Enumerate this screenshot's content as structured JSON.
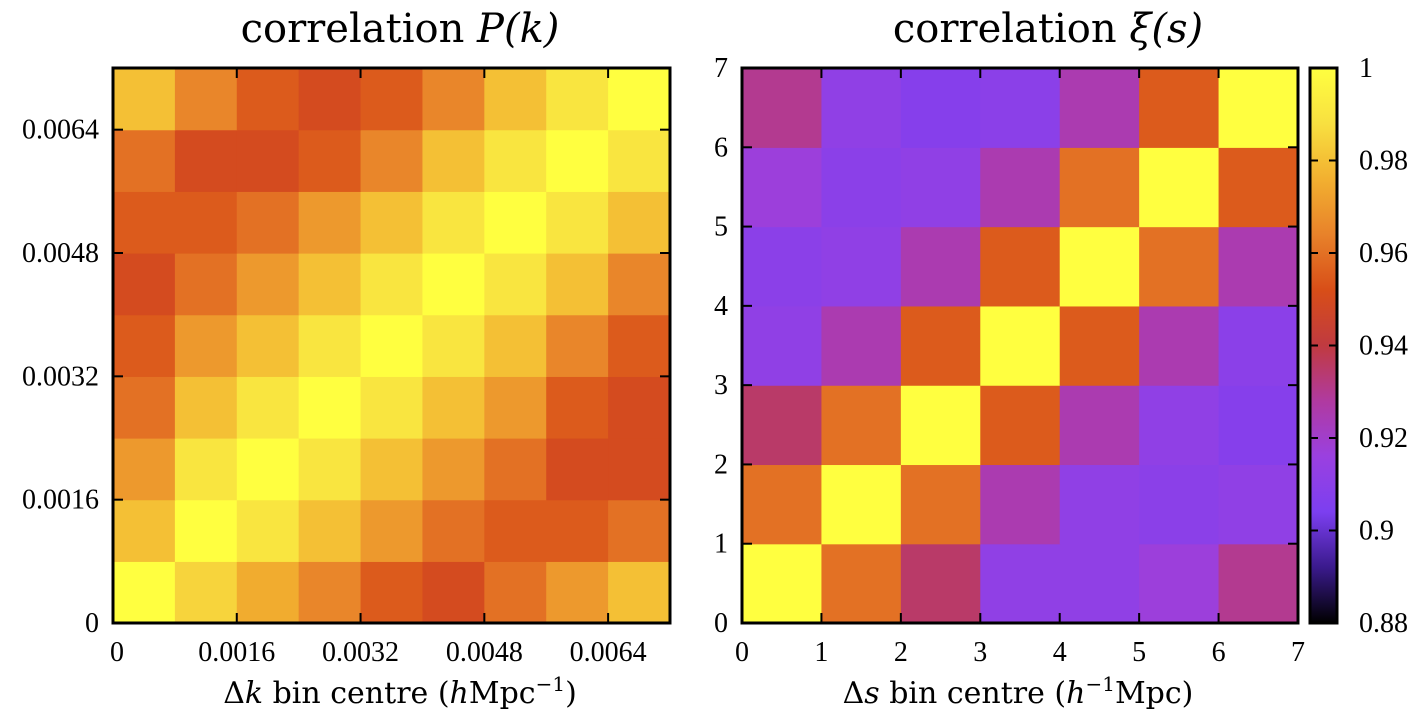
{
  "chart_data": [
    {
      "type": "heatmap",
      "id": "pk",
      "title": "correlation P(k)",
      "xlabel": "Δk bin centre (hMpc⁻¹)",
      "ylabel": "",
      "xlim": [
        0,
        0.0072
      ],
      "ylim": [
        0,
        0.0072
      ],
      "xticks": [
        0,
        0.0016,
        0.0032,
        0.0048,
        0.0064
      ],
      "yticks": [
        0,
        0.0016,
        0.0032,
        0.0048,
        0.0064
      ],
      "xtick_labels": [
        "0",
        "0.0016",
        "0.0032",
        "0.0048",
        "0.0064"
      ],
      "ytick_labels": [
        "0",
        "0.0016",
        "0.0032",
        "0.0048",
        "0.0064"
      ],
      "nx": 9,
      "ny": 9,
      "values": [
        [
          1.0,
          0.985,
          0.975,
          0.965,
          0.955,
          0.95,
          0.96,
          0.97,
          0.98
        ],
        [
          0.98,
          1.0,
          0.99,
          0.98,
          0.97,
          0.96,
          0.955,
          0.955,
          0.96
        ],
        [
          0.97,
          0.99,
          1.0,
          0.99,
          0.98,
          0.97,
          0.96,
          0.95,
          0.95
        ],
        [
          0.96,
          0.98,
          0.99,
          1.0,
          0.99,
          0.98,
          0.97,
          0.955,
          0.95
        ],
        [
          0.955,
          0.97,
          0.98,
          0.99,
          1.0,
          0.99,
          0.98,
          0.965,
          0.955
        ],
        [
          0.95,
          0.96,
          0.97,
          0.98,
          0.99,
          1.0,
          0.99,
          0.98,
          0.965
        ],
        [
          0.955,
          0.955,
          0.96,
          0.97,
          0.98,
          0.99,
          1.0,
          0.99,
          0.98
        ],
        [
          0.96,
          0.95,
          0.95,
          0.955,
          0.965,
          0.98,
          0.99,
          1.0,
          0.99
        ],
        [
          0.98,
          0.965,
          0.955,
          0.95,
          0.955,
          0.965,
          0.98,
          0.99,
          1.0
        ]
      ]
    },
    {
      "type": "heatmap",
      "id": "xi",
      "title": "correlation ξ(s)",
      "xlabel": "Δs bin centre (h⁻¹Mpc)",
      "ylabel": "",
      "xlim": [
        0,
        7
      ],
      "ylim": [
        0,
        7
      ],
      "xticks": [
        0,
        1,
        2,
        3,
        4,
        5,
        6,
        7
      ],
      "yticks": [
        0,
        1,
        2,
        3,
        4,
        5,
        6,
        7
      ],
      "xtick_labels": [
        "0",
        "1",
        "2",
        "3",
        "4",
        "5",
        "6",
        "7"
      ],
      "ytick_labels": [
        "0",
        "1",
        "2",
        "3",
        "4",
        "5",
        "6",
        "7"
      ],
      "nx": 7,
      "ny": 7,
      "values": [
        [
          1.0,
          0.96,
          0.935,
          0.912,
          0.912,
          0.917,
          0.93
        ],
        [
          0.96,
          1.0,
          0.96,
          0.925,
          0.912,
          0.91,
          0.912
        ],
        [
          0.935,
          0.96,
          1.0,
          0.955,
          0.925,
          0.912,
          0.908
        ],
        [
          0.912,
          0.925,
          0.955,
          1.0,
          0.955,
          0.925,
          0.91
        ],
        [
          0.91,
          0.912,
          0.925,
          0.955,
          1.0,
          0.96,
          0.925
        ],
        [
          0.917,
          0.91,
          0.912,
          0.925,
          0.96,
          1.0,
          0.955
        ],
        [
          0.93,
          0.912,
          0.908,
          0.91,
          0.925,
          0.955,
          1.0
        ]
      ]
    }
  ],
  "colorbar": {
    "range": [
      0.88,
      1.0
    ],
    "ticks": [
      "1",
      "0.98",
      "0.96",
      "0.94",
      "0.92",
      "0.9",
      "0.88"
    ],
    "tick_values": [
      1.0,
      0.98,
      0.96,
      0.94,
      0.92,
      0.9,
      0.88
    ],
    "palette": [
      "#000000",
      "#3a1a8c",
      "#7c3ff0",
      "#9a40e0",
      "#b03aa0",
      "#c03a40",
      "#d84e18",
      "#e8822a",
      "#f2b030",
      "#f8e040",
      "#ffff40"
    ]
  },
  "titles": {
    "pk_prefix": "correlation ",
    "pk_math": "P(k)",
    "xi_prefix": "correlation ",
    "xi_math": "ξ(s)"
  },
  "axis_labels": {
    "pk_delta": "Δ",
    "pk_var": "k",
    "pk_mid": " bin centre (",
    "pk_h": "h",
    "pk_unit": "Mpc",
    "pk_exp": "−1",
    "pk_close": ")",
    "xi_delta": "Δ",
    "xi_var": "s",
    "xi_mid": " bin centre (",
    "xi_h": "h",
    "xi_exp": "−1",
    "xi_unit": "Mpc)"
  }
}
